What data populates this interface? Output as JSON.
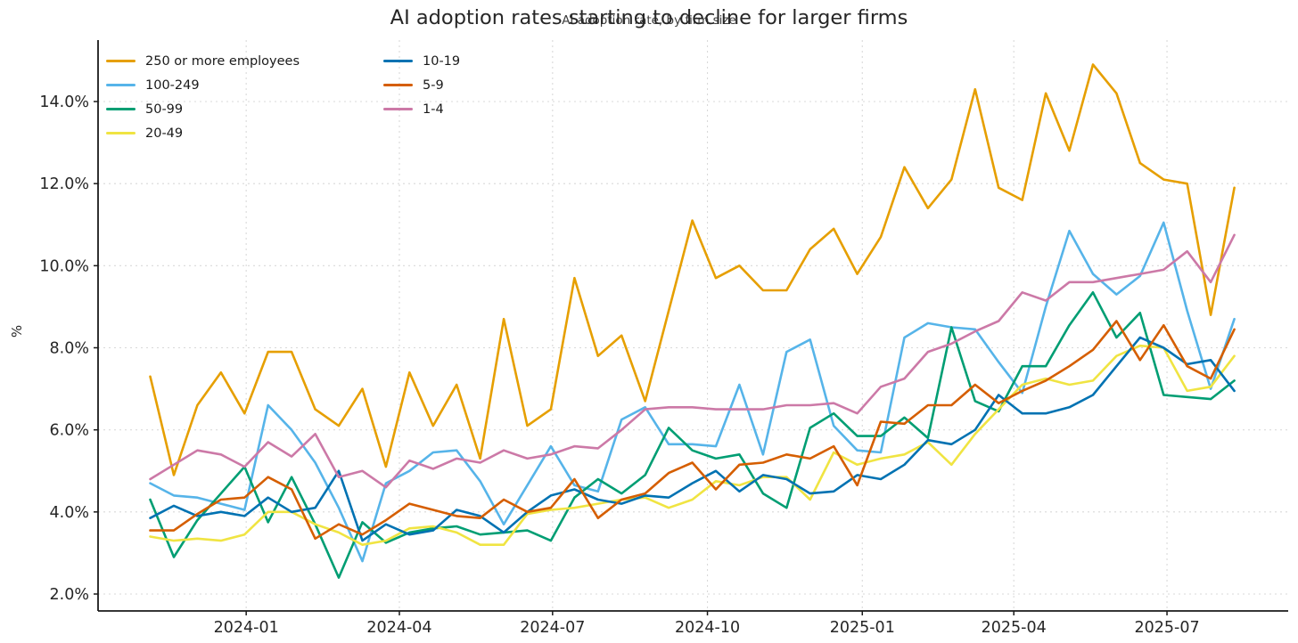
{
  "header": {
    "title": "AI adoption rates starting to decline for larger firms",
    "subtitle": "AI adoption rate, by firm size"
  },
  "chart_data": {
    "type": "line",
    "title": "AI adoption rates starting to decline for larger firms",
    "subtitle": "AI adoption rate, by firm size",
    "ylabel": "%",
    "xlabel": "",
    "ylim": [
      1.6,
      15.5
    ],
    "yticks": [
      2,
      4,
      6,
      8,
      10,
      12,
      14
    ],
    "ytick_labels": [
      "2.0%",
      "4.0%",
      "6.0%",
      "8.0%",
      "10.0%",
      "12.0%",
      "14.0%"
    ],
    "x_axis_range": [
      "2023-10-05",
      "2025-09-11"
    ],
    "x_start_date": "2023-11-05",
    "x_interval_days": 14,
    "n_points": 47,
    "xticks": [
      {
        "date": "2024-01-01",
        "label": "2024-01"
      },
      {
        "date": "2024-04-01",
        "label": "2024-04"
      },
      {
        "date": "2024-07-01",
        "label": "2024-07"
      },
      {
        "date": "2024-10-01",
        "label": "2024-10"
      },
      {
        "date": "2025-01-01",
        "label": "2025-01"
      },
      {
        "date": "2025-04-01",
        "label": "2025-04"
      },
      {
        "date": "2025-07-01",
        "label": "2025-07"
      }
    ],
    "grid": "dashed-light-both-axes",
    "legend_position": "upper-left-two-columns",
    "legend_columns": [
      4,
      3
    ],
    "colors": {
      "grid": "#d9d9d9",
      "axis": "#1a1a1a",
      "text": "#262626"
    },
    "series": [
      {
        "name": "250 or more employees",
        "color": "#E69F00",
        "values": [
          7.3,
          4.9,
          6.6,
          7.4,
          6.4,
          7.9,
          7.9,
          6.5,
          6.1,
          7.0,
          5.1,
          7.4,
          6.1,
          7.1,
          5.3,
          8.7,
          6.1,
          6.5,
          9.7,
          7.8,
          8.3,
          6.7,
          8.9,
          11.1,
          9.7,
          10.0,
          9.4,
          9.4,
          10.4,
          10.9,
          9.8,
          10.7,
          12.4,
          11.4,
          12.1,
          14.3,
          11.9,
          11.6,
          14.2,
          12.8,
          14.9,
          14.2,
          12.5,
          12.1,
          12.0,
          8.8,
          11.9
        ]
      },
      {
        "name": "100-249",
        "color": "#56B4E9",
        "values": [
          4.7,
          4.4,
          4.35,
          4.2,
          4.05,
          6.6,
          6.0,
          5.2,
          4.1,
          2.8,
          4.7,
          5.0,
          5.45,
          5.5,
          4.75,
          3.7,
          4.65,
          5.6,
          4.65,
          4.5,
          6.25,
          6.55,
          5.65,
          5.65,
          5.6,
          7.1,
          5.4,
          7.9,
          8.2,
          6.1,
          5.5,
          5.45,
          8.25,
          8.6,
          8.5,
          8.45,
          7.65,
          6.9,
          9.0,
          10.85,
          9.8,
          9.3,
          9.75,
          11.05,
          8.9,
          7.0,
          8.7
        ]
      },
      {
        "name": "50-99",
        "color": "#009E73",
        "values": [
          4.3,
          2.9,
          3.8,
          4.45,
          5.1,
          3.75,
          4.85,
          3.7,
          2.4,
          3.75,
          3.25,
          3.5,
          3.6,
          3.65,
          3.45,
          3.5,
          3.55,
          3.3,
          4.35,
          4.8,
          4.45,
          4.9,
          6.05,
          5.5,
          5.3,
          5.4,
          4.45,
          4.1,
          6.05,
          6.4,
          5.85,
          5.85,
          6.3,
          5.8,
          8.5,
          6.7,
          6.45,
          7.55,
          7.55,
          8.55,
          9.35,
          8.25,
          8.85,
          6.85,
          6.8,
          6.75,
          7.2
        ]
      },
      {
        "name": "20-49",
        "color": "#F0E442",
        "values": [
          3.4,
          3.3,
          3.35,
          3.3,
          3.45,
          4.0,
          4.0,
          3.7,
          3.5,
          3.2,
          3.3,
          3.6,
          3.65,
          3.5,
          3.2,
          3.2,
          3.95,
          4.05,
          4.1,
          4.2,
          4.3,
          4.35,
          4.1,
          4.3,
          4.75,
          4.65,
          4.85,
          4.85,
          4.3,
          5.45,
          5.15,
          5.3,
          5.4,
          5.7,
          5.15,
          5.9,
          6.5,
          7.1,
          7.25,
          7.1,
          7.2,
          7.8,
          8.05,
          8.0,
          6.95,
          7.05,
          7.8
        ]
      },
      {
        "name": "10-19",
        "color": "#0072B2",
        "values": [
          3.85,
          4.15,
          3.9,
          4.0,
          3.9,
          4.35,
          4.0,
          4.1,
          5.0,
          3.3,
          3.7,
          3.45,
          3.55,
          4.05,
          3.9,
          3.5,
          4.0,
          4.4,
          4.55,
          4.3,
          4.2,
          4.4,
          4.35,
          4.7,
          5.0,
          4.5,
          4.9,
          4.8,
          4.45,
          4.5,
          4.9,
          4.8,
          5.15,
          5.75,
          5.65,
          6.0,
          6.85,
          6.4,
          6.4,
          6.55,
          6.85,
          7.55,
          8.25,
          8.0,
          7.6,
          7.7,
          6.95
        ]
      },
      {
        "name": "5-9",
        "color": "#D55E00",
        "values": [
          3.55,
          3.55,
          3.95,
          4.3,
          4.35,
          4.85,
          4.55,
          3.35,
          3.7,
          3.45,
          3.8,
          4.2,
          4.05,
          3.9,
          3.85,
          4.3,
          4.0,
          4.1,
          4.8,
          3.85,
          4.3,
          4.45,
          4.95,
          5.2,
          4.55,
          5.15,
          5.2,
          5.4,
          5.3,
          5.6,
          4.65,
          6.2,
          6.15,
          6.6,
          6.6,
          7.1,
          6.65,
          6.95,
          7.2,
          7.55,
          7.95,
          8.65,
          7.7,
          8.55,
          7.55,
          7.25,
          8.45
        ]
      },
      {
        "name": "1-4",
        "color": "#CC79A7",
        "values": [
          4.8,
          5.15,
          5.5,
          5.4,
          5.1,
          5.7,
          5.35,
          5.9,
          4.85,
          5.0,
          4.6,
          5.25,
          5.05,
          5.3,
          5.2,
          5.5,
          5.3,
          5.4,
          5.6,
          5.55,
          6.0,
          6.5,
          6.55,
          6.55,
          6.5,
          6.5,
          6.5,
          6.6,
          6.6,
          6.65,
          6.4,
          7.05,
          7.25,
          7.9,
          8.1,
          8.4,
          8.65,
          9.35,
          9.15,
          9.6,
          9.6,
          9.7,
          9.8,
          9.9,
          10.35,
          9.6,
          10.75
        ]
      }
    ]
  }
}
